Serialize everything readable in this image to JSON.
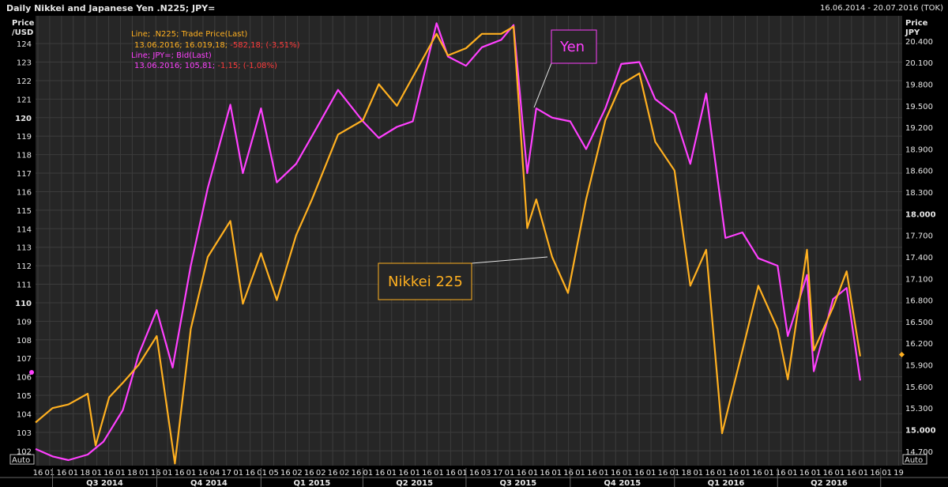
{
  "header": {
    "title": "Daily Nikkei and Japanese Yen .N225; JPY=",
    "range": "16.06.2014 - 20.07.2016 (TOK)"
  },
  "left_axis": {
    "label_line1": "Price",
    "label_line2": "/USD",
    "auto": "Auto"
  },
  "right_axis": {
    "label_line1": "Price",
    "label_line2": "JPY",
    "auto": "Auto"
  },
  "legend": {
    "line1": "Line; .N225; Trade Price(Last)",
    "line2_prefix": "13.06.2016; 16.019,18; ",
    "line2_change": "-582,18; (-3,51%)",
    "line3": "Line; JPY=; Bid(Last)",
    "line4_prefix": "13.06.2016; 105,81; ",
    "line4_change": "-1,15; (-1,08%)"
  },
  "annotations": {
    "yen": "Yen",
    "nikkei": "Nikkei 225"
  },
  "colors": {
    "nikkei": "#ffb020",
    "yen": "#ff40ff",
    "grid": "#3c3c3c",
    "background": "#262626",
    "change": "#ff3b3b"
  },
  "chart_data": {
    "type": "line",
    "title": "Daily Nikkei and Japanese Yen .N225; JPY=",
    "x_range": [
      "2014-06-16",
      "2016-07-20"
    ],
    "y_left": {
      "label": "Price /USD",
      "ticks": [
        102,
        103,
        104,
        105,
        106,
        107,
        108,
        109,
        110,
        111,
        112,
        113,
        114,
        115,
        116,
        117,
        118,
        119,
        120,
        121,
        122,
        123,
        124
      ],
      "range": [
        101.2,
        125.5
      ]
    },
    "y_right": {
      "label": "Price JPY",
      "ticks": [
        "14.700",
        "15.000",
        "15.300",
        "15.600",
        "15.900",
        "16.200",
        "16.500",
        "16.800",
        "17.100",
        "17.400",
        "17.700",
        "18.000",
        "18.300",
        "18.600",
        "18.900",
        "19.200",
        "19.500",
        "19.800",
        "20.100",
        "20.400"
      ],
      "range": [
        14500,
        20750
      ]
    },
    "x_ticks": [
      "16",
      "01",
      "16",
      "01",
      "18",
      "01",
      "16",
      "01",
      "18",
      "01",
      "16",
      "01",
      "16",
      "01",
      "16",
      "04",
      "17",
      "01",
      "16",
      "01",
      "05",
      "16",
      "02",
      "16",
      "02",
      "16",
      "02",
      "16",
      "01",
      "16",
      "01",
      "16",
      "01",
      "16",
      "01",
      "16",
      "01",
      "16",
      "03",
      "17",
      "01",
      "16",
      "01",
      "16",
      "01",
      "16",
      "01",
      "16",
      "01",
      "16",
      "01",
      "16",
      "01",
      "16",
      "01",
      "18",
      "01",
      "16",
      "01",
      "16",
      "01",
      "16",
      "01",
      "16",
      "01",
      "16",
      "01",
      "16",
      "01",
      "16",
      "01",
      "16",
      "01",
      "19"
    ],
    "quarters": [
      "Q3 2014",
      "Q4 2014",
      "Q1 2015",
      "Q2 2015",
      "Q3 2015",
      "Q4 2015",
      "Q1 2016",
      "Q2 2016"
    ],
    "grid": true,
    "series": [
      {
        "name": "Line; JPY=; Bid(Last)",
        "axis": "left",
        "points": [
          [
            "2014-06-16",
            102.1
          ],
          [
            "2014-07-01",
            101.7
          ],
          [
            "2014-07-15",
            101.5
          ],
          [
            "2014-08-01",
            101.8
          ],
          [
            "2014-08-15",
            102.5
          ],
          [
            "2014-09-01",
            104.2
          ],
          [
            "2014-09-15",
            107.2
          ],
          [
            "2014-10-01",
            109.6
          ],
          [
            "2014-10-15",
            106.5
          ],
          [
            "2014-10-31",
            112.0
          ],
          [
            "2014-11-15",
            116.2
          ],
          [
            "2014-12-05",
            120.7
          ],
          [
            "2014-12-16",
            117.0
          ],
          [
            "2015-01-01",
            120.5
          ],
          [
            "2015-01-15",
            116.5
          ],
          [
            "2015-02-01",
            117.5
          ],
          [
            "2015-02-15",
            119.0
          ],
          [
            "2015-03-10",
            121.5
          ],
          [
            "2015-04-01",
            119.8
          ],
          [
            "2015-04-15",
            118.9
          ],
          [
            "2015-05-01",
            119.5
          ],
          [
            "2015-05-15",
            119.8
          ],
          [
            "2015-06-05",
            125.1
          ],
          [
            "2015-06-15",
            123.3
          ],
          [
            "2015-07-01",
            122.8
          ],
          [
            "2015-07-15",
            123.8
          ],
          [
            "2015-08-01",
            124.2
          ],
          [
            "2015-08-12",
            125.0
          ],
          [
            "2015-08-24",
            117.0
          ],
          [
            "2015-09-01",
            120.5
          ],
          [
            "2015-09-15",
            120.0
          ],
          [
            "2015-10-01",
            119.8
          ],
          [
            "2015-10-15",
            118.3
          ],
          [
            "2015-11-01",
            120.5
          ],
          [
            "2015-11-15",
            122.9
          ],
          [
            "2015-12-01",
            123.0
          ],
          [
            "2015-12-15",
            121.0
          ],
          [
            "2016-01-01",
            120.2
          ],
          [
            "2016-01-15",
            117.5
          ],
          [
            "2016-01-29",
            121.3
          ],
          [
            "2016-02-15",
            113.5
          ],
          [
            "2016-03-01",
            113.8
          ],
          [
            "2016-03-15",
            112.4
          ],
          [
            "2016-04-01",
            112.0
          ],
          [
            "2016-04-10",
            108.2
          ],
          [
            "2016-04-27",
            111.5
          ],
          [
            "2016-05-03",
            106.3
          ],
          [
            "2016-05-20",
            110.2
          ],
          [
            "2016-06-01",
            110.8
          ],
          [
            "2016-06-13",
            105.8
          ]
        ]
      },
      {
        "name": "Line; .N225; Trade Price(Last)",
        "axis": "right",
        "points": [
          [
            "2014-06-16",
            15100
          ],
          [
            "2014-07-01",
            15300
          ],
          [
            "2014-07-15",
            15350
          ],
          [
            "2014-08-01",
            15500
          ],
          [
            "2014-08-08",
            14780
          ],
          [
            "2014-08-20",
            15450
          ],
          [
            "2014-09-01",
            15650
          ],
          [
            "2014-09-15",
            15900
          ],
          [
            "2014-10-01",
            16300
          ],
          [
            "2014-10-17",
            14530
          ],
          [
            "2014-10-31",
            16400
          ],
          [
            "2014-11-15",
            17400
          ],
          [
            "2014-12-05",
            17900
          ],
          [
            "2014-12-16",
            16750
          ],
          [
            "2015-01-01",
            17450
          ],
          [
            "2015-01-15",
            16800
          ],
          [
            "2015-02-01",
            17700
          ],
          [
            "2015-02-15",
            18200
          ],
          [
            "2015-03-10",
            19100
          ],
          [
            "2015-04-01",
            19300
          ],
          [
            "2015-04-15",
            19800
          ],
          [
            "2015-05-01",
            19500
          ],
          [
            "2015-05-15",
            19900
          ],
          [
            "2015-06-05",
            20500
          ],
          [
            "2015-06-15",
            20200
          ],
          [
            "2015-07-01",
            20300
          ],
          [
            "2015-07-15",
            20500
          ],
          [
            "2015-08-01",
            20500
          ],
          [
            "2015-08-12",
            20600
          ],
          [
            "2015-08-24",
            17800
          ],
          [
            "2015-09-01",
            18200
          ],
          [
            "2015-09-15",
            17400
          ],
          [
            "2015-09-29",
            16900
          ],
          [
            "2015-10-15",
            18200
          ],
          [
            "2015-11-01",
            19300
          ],
          [
            "2015-11-15",
            19800
          ],
          [
            "2015-12-01",
            19950
          ],
          [
            "2015-12-15",
            19000
          ],
          [
            "2016-01-01",
            18600
          ],
          [
            "2016-01-15",
            17000
          ],
          [
            "2016-01-29",
            17500
          ],
          [
            "2016-02-12",
            14950
          ],
          [
            "2016-03-01",
            16100
          ],
          [
            "2016-03-15",
            17000
          ],
          [
            "2016-04-01",
            16400
          ],
          [
            "2016-04-10",
            15700
          ],
          [
            "2016-04-27",
            17500
          ],
          [
            "2016-05-03",
            16100
          ],
          [
            "2016-05-20",
            16700
          ],
          [
            "2016-06-01",
            17200
          ],
          [
            "2016-06-13",
            16019
          ]
        ]
      }
    ]
  }
}
